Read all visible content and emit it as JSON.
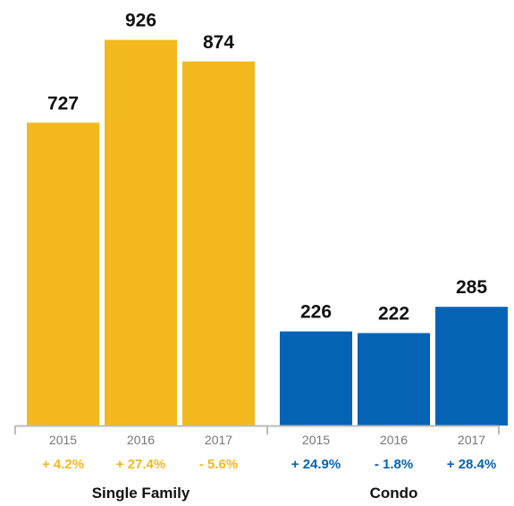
{
  "chart_data": {
    "type": "bar",
    "title": "",
    "xlabel": "",
    "ylabel": "",
    "ylim": [
      0,
      1000
    ],
    "grid": false,
    "groups": [
      {
        "name": "Single Family",
        "color": "#F2B81E",
        "bars": [
          {
            "year": "2015",
            "value": 727,
            "value_label": "727",
            "change": "+ 4.2%"
          },
          {
            "year": "2016",
            "value": 926,
            "value_label": "926",
            "change": "+ 27.4%"
          },
          {
            "year": "2017",
            "value": 874,
            "value_label": "874",
            "change": "- 5.6%"
          }
        ]
      },
      {
        "name": "Condo",
        "color": "#0563B5",
        "bars": [
          {
            "year": "2015",
            "value": 226,
            "value_label": "226",
            "change": "+ 24.9%"
          },
          {
            "year": "2016",
            "value": 222,
            "value_label": "222",
            "change": "- 1.8%"
          },
          {
            "year": "2017",
            "value": 285,
            "value_label": "285",
            "change": "+ 28.4%"
          }
        ]
      }
    ],
    "axis_color": "#BBBBBB",
    "year_label_color": "#777777"
  }
}
